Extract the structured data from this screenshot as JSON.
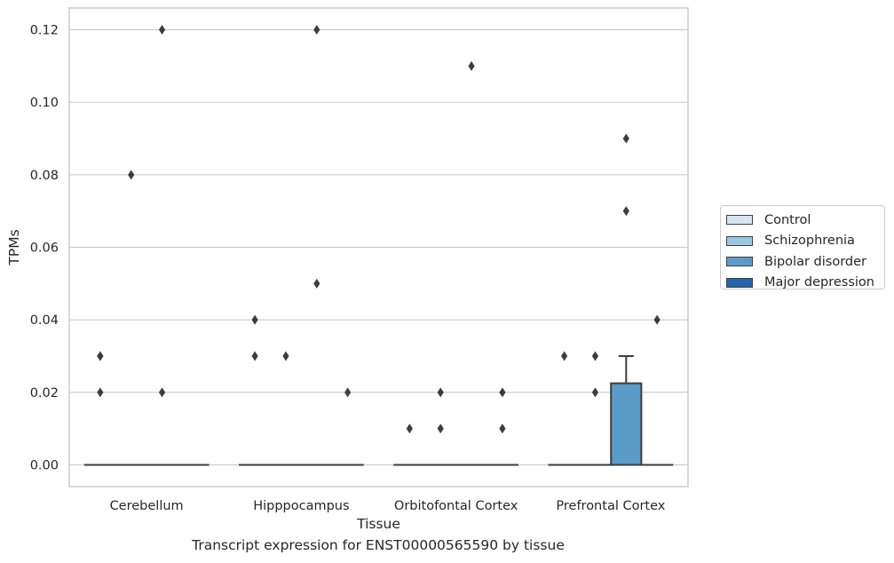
{
  "chart_data": {
    "type": "box",
    "xlabel": "Tissue",
    "ylabel": "TPMs",
    "caption": "Transcript expression for ENST00000565590 by tissue",
    "ylim": [
      -0.006,
      0.126
    ],
    "yticks": [
      "0.00",
      "0.02",
      "0.04",
      "0.06",
      "0.08",
      "0.10",
      "0.12"
    ],
    "ytick_values": [
      0,
      0.02,
      0.04,
      0.06,
      0.08,
      0.1,
      0.12
    ],
    "grid": "horizontal",
    "legend_placement": "right",
    "categories": [
      "Cerebellum",
      "Hipppocampus",
      "Orbitofontal Cortex",
      "Prefrontal Cortex"
    ],
    "series": [
      {
        "name": "Control",
        "color": "#d6e5f3",
        "boxes": [
          {
            "median": 0,
            "q1": 0,
            "q3": 0,
            "whisker_low": 0,
            "whisker_high": 0,
            "outliers": [
              0.02,
              0.03,
              0.03
            ]
          },
          {
            "median": 0,
            "q1": 0,
            "q3": 0,
            "whisker_low": 0,
            "whisker_high": 0,
            "outliers": [
              0.03,
              0.04
            ]
          },
          {
            "median": 0,
            "q1": 0,
            "q3": 0,
            "whisker_low": 0,
            "whisker_high": 0,
            "outliers": [
              0.01
            ]
          },
          {
            "median": 0,
            "q1": 0,
            "q3": 0,
            "whisker_low": 0,
            "whisker_high": 0,
            "outliers": [
              0.03
            ]
          }
        ]
      },
      {
        "name": "Schizophrenia",
        "color": "#9ac8e0",
        "boxes": [
          {
            "median": 0,
            "q1": 0,
            "q3": 0,
            "whisker_low": 0,
            "whisker_high": 0,
            "outliers": [
              0.08
            ]
          },
          {
            "median": 0,
            "q1": 0,
            "q3": 0,
            "whisker_low": 0,
            "whisker_high": 0,
            "outliers": [
              0.03
            ]
          },
          {
            "median": 0,
            "q1": 0,
            "q3": 0,
            "whisker_low": 0,
            "whisker_high": 0,
            "outliers": [
              0.01,
              0.02
            ]
          },
          {
            "median": 0,
            "q1": 0,
            "q3": 0,
            "whisker_low": 0,
            "whisker_high": 0,
            "outliers": [
              0.02,
              0.03
            ]
          }
        ]
      },
      {
        "name": "Bipolar disorder",
        "color": "#5b9bc9",
        "boxes": [
          {
            "median": 0,
            "q1": 0,
            "q3": 0,
            "whisker_low": 0,
            "whisker_high": 0,
            "outliers": [
              0.02,
              0.12
            ]
          },
          {
            "median": 0,
            "q1": 0,
            "q3": 0,
            "whisker_low": 0,
            "whisker_high": 0,
            "outliers": [
              0.05,
              0.12
            ]
          },
          {
            "median": 0,
            "q1": 0,
            "q3": 0,
            "whisker_low": 0,
            "whisker_high": 0,
            "outliers": [
              0.11
            ]
          },
          {
            "median": 0,
            "q1": 0,
            "q3": 0.0225,
            "whisker_low": 0,
            "whisker_high": 0.03,
            "outliers": [
              0.07,
              0.09
            ]
          }
        ]
      },
      {
        "name": "Major depression",
        "color": "#2166ac",
        "boxes": [
          {
            "median": 0,
            "q1": 0,
            "q3": 0,
            "whisker_low": 0,
            "whisker_high": 0,
            "outliers": []
          },
          {
            "median": 0,
            "q1": 0,
            "q3": 0,
            "whisker_low": 0,
            "whisker_high": 0,
            "outliers": [
              0.02
            ]
          },
          {
            "median": 0,
            "q1": 0,
            "q3": 0,
            "whisker_low": 0,
            "whisker_high": 0,
            "outliers": [
              0.01,
              0.02
            ]
          },
          {
            "median": 0,
            "q1": 0,
            "q3": 0,
            "whisker_low": 0,
            "whisker_high": 0,
            "outliers": [
              0.04
            ]
          }
        ]
      }
    ]
  }
}
